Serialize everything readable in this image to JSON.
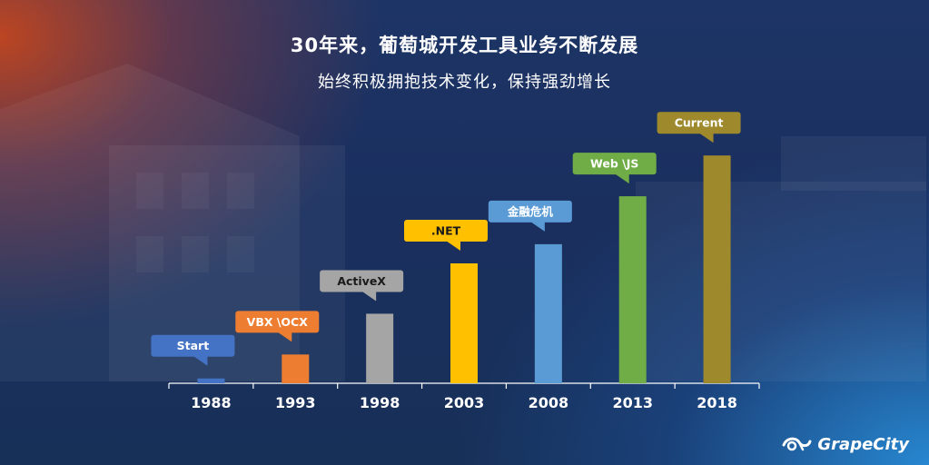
{
  "title": "30年来，葡萄城开发工具业务不断发展",
  "subtitle": "始终积极拥抱技术变化，保持强劲增长",
  "brand": {
    "name": "GrapeCity",
    "icon": "grapecity-logo-icon"
  },
  "chart_data": {
    "type": "bar",
    "categories": [
      "1988",
      "1993",
      "1998",
      "2003",
      "2008",
      "2013",
      "2018"
    ],
    "values": [
      2,
      12,
      29,
      50,
      58,
      78,
      95
    ],
    "ylim": [
      0,
      100
    ],
    "grid": false,
    "annotations": [
      "Start",
      "VBX \\OCX",
      "ActiveX",
      ".NET",
      "金融危机",
      "Web \\JS",
      "Current"
    ],
    "colors": [
      "#4472c4",
      "#ed7d31",
      "#a5a5a5",
      "#ffc000",
      "#5b9bd5",
      "#70ad47",
      "#9e8a2c"
    ]
  }
}
